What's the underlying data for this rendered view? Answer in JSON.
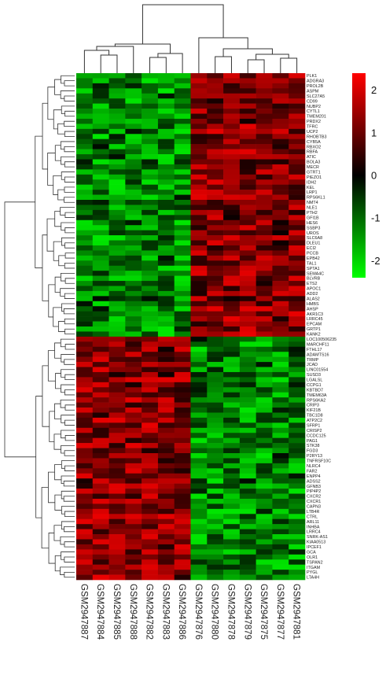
{
  "chart_data": {
    "type": "heatmap",
    "colorscale": {
      "low": "#00ff00",
      "mid": "#000000",
      "high": "#ff0000",
      "range": [
        -2.4,
        2.4
      ],
      "ticks": [
        2,
        1,
        0,
        -1,
        -2
      ],
      "tick_labels": [
        "2",
        "1",
        "0",
        "-1",
        "-2"
      ]
    },
    "columns": [
      "GSM2947887",
      "GSM2947884",
      "GSM2947885",
      "GSM2947888",
      "GSM2947882",
      "GSM2947883",
      "GSM2947886",
      "GSM2947876",
      "GSM2947880",
      "GSM2947878",
      "GSM2947879",
      "GSM2947875",
      "GSM2947877",
      "GSM2947881"
    ],
    "rows": [
      "PLK1",
      "ADGRA3",
      "PROL2B",
      "ASPM",
      "SLC27A5",
      "CD99",
      "NUBP2",
      "CYTL1",
      "TMEM201",
      "PRDX2",
      "TFRC",
      "UCP2",
      "RHOBTB3",
      "CYB5A",
      "RBXO2",
      "RBFA",
      "ATIC",
      "BOLA3",
      "MECR",
      "GTRT1",
      "PIEZO1",
      "IDH2",
      "KEL",
      "LRP1",
      "RPS6KL1",
      "NMT4",
      "NLE1",
      "PTH2",
      "GFI1B",
      "HES6",
      "SSBP3",
      "UROS",
      "SLC6A8",
      "DLEU1",
      "ECI2",
      "PCCB",
      "EPB42",
      "TAL1",
      "SPTA1",
      "SEMA4C",
      "BLVRB",
      "ETS2",
      "APOC1",
      "ADD2",
      "ALAS2",
      "HMBS",
      "AHSP",
      "AKR1C3",
      "LRRC45",
      "EPCAM",
      "GRTP1",
      "KANK2",
      "LOC100506235",
      "MARCHF11",
      "FTHL17",
      "ADAMTS16",
      "TRMP",
      "JCAD",
      "LINC01554",
      "SUSD3",
      "LGALSL",
      "CCPG1",
      "KBTBD7",
      "TMEM63A",
      "RPS6KA2",
      "CRIP3",
      "KIF21B",
      "TBC1D8",
      "ATP2C2",
      "SFRP1",
      "CRISP2",
      "CCDC125",
      "PAG1",
      "STK38",
      "FGD3",
      "P2RY13",
      "TNFRSF10C",
      "NLRC4",
      "FAR2",
      "ENPP4",
      "ADSS2",
      "GFNB3",
      "PIP4P2",
      "CXCR2",
      "CXCR1",
      "CAPN3",
      "LTB4R",
      "CTRL",
      "ARL11",
      "INHBA",
      "LRRC4",
      "SNRK-AS1",
      "KIAA0513",
      "IPCEF1",
      "GCA",
      "OLR1",
      "TSPAN2",
      "ITGAM",
      "PYGL",
      "LTA4H"
    ],
    "group_upregulated_first": [
      "GSM2947887",
      "GSM2947884",
      "GSM2947885",
      "GSM2947888",
      "GSM2947882",
      "GSM2947883",
      "GSM2947886"
    ],
    "group_upregulated_second": [
      "GSM2947876",
      "GSM2947880",
      "GSM2947878",
      "GSM2947879",
      "GSM2947875",
      "GSM2947877",
      "GSM2947881"
    ],
    "row_split_index": 52,
    "values_note": ""
  }
}
